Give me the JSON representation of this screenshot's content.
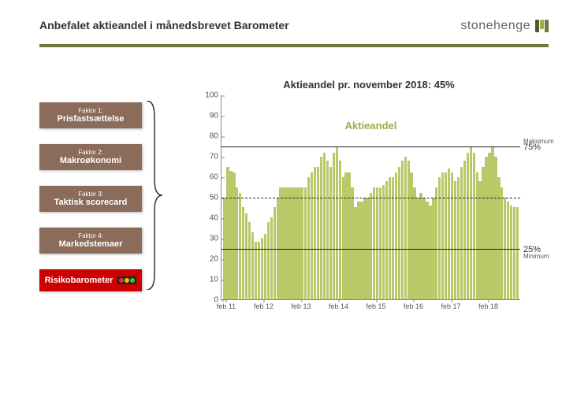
{
  "page_title": "Anbefalet aktieandel i månedsbrevet Barometer",
  "logo": {
    "text": "stonehenge",
    "stones": [
      "#4a5a2a",
      "#9aae4a",
      "#6b7a3b"
    ]
  },
  "title_bar_color": "#6b7a3b",
  "factors": [
    {
      "num": "Faktor 1:",
      "name": "Prisfastsættelse"
    },
    {
      "num": "Faktor 2:",
      "name": "Makroøkonomi"
    },
    {
      "num": "Faktor 3:",
      "name": "Taktisk scorecard"
    },
    {
      "num": "Faktor 4:",
      "name": "Markedstemaer"
    }
  ],
  "factor_box_color": "#8b6b5a",
  "risk": {
    "label": "Risikobarometer",
    "bg": "#c00",
    "lights": [
      "#d33",
      "#fb0",
      "#3c3"
    ]
  },
  "chart": {
    "title": "Aktieandel pr. november 2018: 45%",
    "series_label": "Aktieandel",
    "series_label_color": "#9aae4a",
    "bar_color": "#b8c968",
    "ylim": [
      0,
      100
    ],
    "ytick_step": 10,
    "x_labels": [
      "feb 11",
      "feb 12",
      "feb 13",
      "feb 14",
      "feb 15",
      "feb 16",
      "feb 17",
      "feb 18"
    ],
    "ref_max": {
      "value": 75,
      "label": "Maksimum",
      "pct": "75%"
    },
    "ref_mid": {
      "value": 50
    },
    "ref_min": {
      "value": 25,
      "label": "Minimum",
      "pct": "25%"
    },
    "values": [
      50,
      65,
      63,
      62,
      55,
      52,
      45,
      42,
      38,
      33,
      28,
      28,
      30,
      32,
      38,
      40,
      45,
      50,
      55,
      55,
      55,
      55,
      55,
      55,
      55,
      55,
      55,
      60,
      62,
      65,
      65,
      70,
      72,
      68,
      65,
      72,
      75,
      68,
      60,
      62,
      62,
      55,
      45,
      48,
      48,
      50,
      50,
      52,
      55,
      55,
      55,
      56,
      58,
      60,
      60,
      62,
      65,
      68,
      70,
      68,
      62,
      55,
      50,
      52,
      50,
      48,
      46,
      50,
      55,
      60,
      62,
      62,
      64,
      62,
      58,
      60,
      65,
      68,
      72,
      75,
      72,
      62,
      58,
      65,
      70,
      72,
      75,
      70,
      60,
      55,
      50,
      48,
      46,
      45,
      45
    ]
  }
}
